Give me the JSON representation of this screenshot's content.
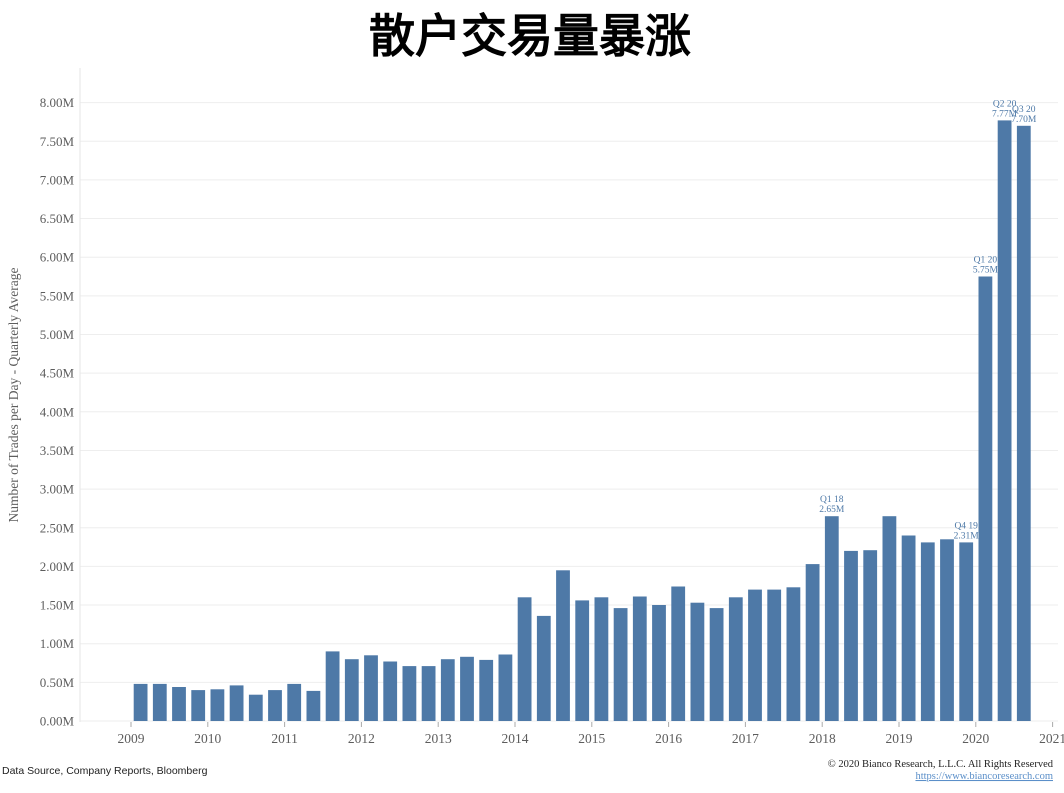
{
  "chart_data": {
    "type": "bar",
    "title": "散户交易量暴涨",
    "ylabel": "Number of Trades per Day - Quarterly Average",
    "xlabel": "",
    "ylim": [
      0,
      8.2
    ],
    "yticks": [
      "0.00M",
      "0.50M",
      "1.00M",
      "1.50M",
      "2.00M",
      "2.50M",
      "3.00M",
      "3.50M",
      "4.00M",
      "4.50M",
      "5.00M",
      "5.50M",
      "6.00M",
      "6.50M",
      "7.00M",
      "7.50M",
      "8.00M"
    ],
    "ytick_values": [
      0,
      0.5,
      1,
      1.5,
      2,
      2.5,
      3,
      3.5,
      4,
      4.5,
      5,
      5.5,
      6,
      6.5,
      7,
      7.5,
      8
    ],
    "xticks": [
      "2009",
      "2010",
      "2011",
      "2012",
      "2013",
      "2014",
      "2015",
      "2016",
      "2017",
      "2018",
      "2019",
      "2020",
      "2021"
    ],
    "x_start": 2009.0,
    "x_end": 2021.0,
    "bar_color": "#4e79a7",
    "grid": true,
    "values": [
      0.48,
      0.48,
      0.44,
      0.4,
      0.41,
      0.46,
      0.34,
      0.4,
      0.48,
      0.39,
      0.9,
      0.8,
      0.85,
      0.77,
      0.71,
      0.71,
      0.8,
      0.83,
      0.79,
      0.86,
      1.6,
      1.36,
      1.95,
      1.56,
      1.6,
      1.46,
      1.61,
      1.5,
      1.74,
      1.53,
      1.46,
      1.6,
      1.7,
      1.7,
      1.73,
      2.03,
      2.65,
      2.2,
      2.21,
      2.65,
      2.4,
      2.31,
      2.35,
      2.31,
      5.75,
      7.77,
      7.7
    ],
    "annotations": [
      {
        "index": 36,
        "label": "Q1 18",
        "value_label": "2.65M"
      },
      {
        "index": 43,
        "label": "Q4 19",
        "value_label": "2.31M"
      },
      {
        "index": 44,
        "label": "Q1 20",
        "value_label": "5.75M"
      },
      {
        "index": 45,
        "label": "Q2 20",
        "value_label": "7.77M"
      },
      {
        "index": 46,
        "label": "Q3 20",
        "value_label": "7.70M"
      }
    ]
  },
  "footer": {
    "source": "Data Source, Company Reports, Bloomberg",
    "copyright": "© 2020 Bianco Research, L.L.C. All Rights Reserved",
    "link": "https://www.biancoresearch.com"
  }
}
